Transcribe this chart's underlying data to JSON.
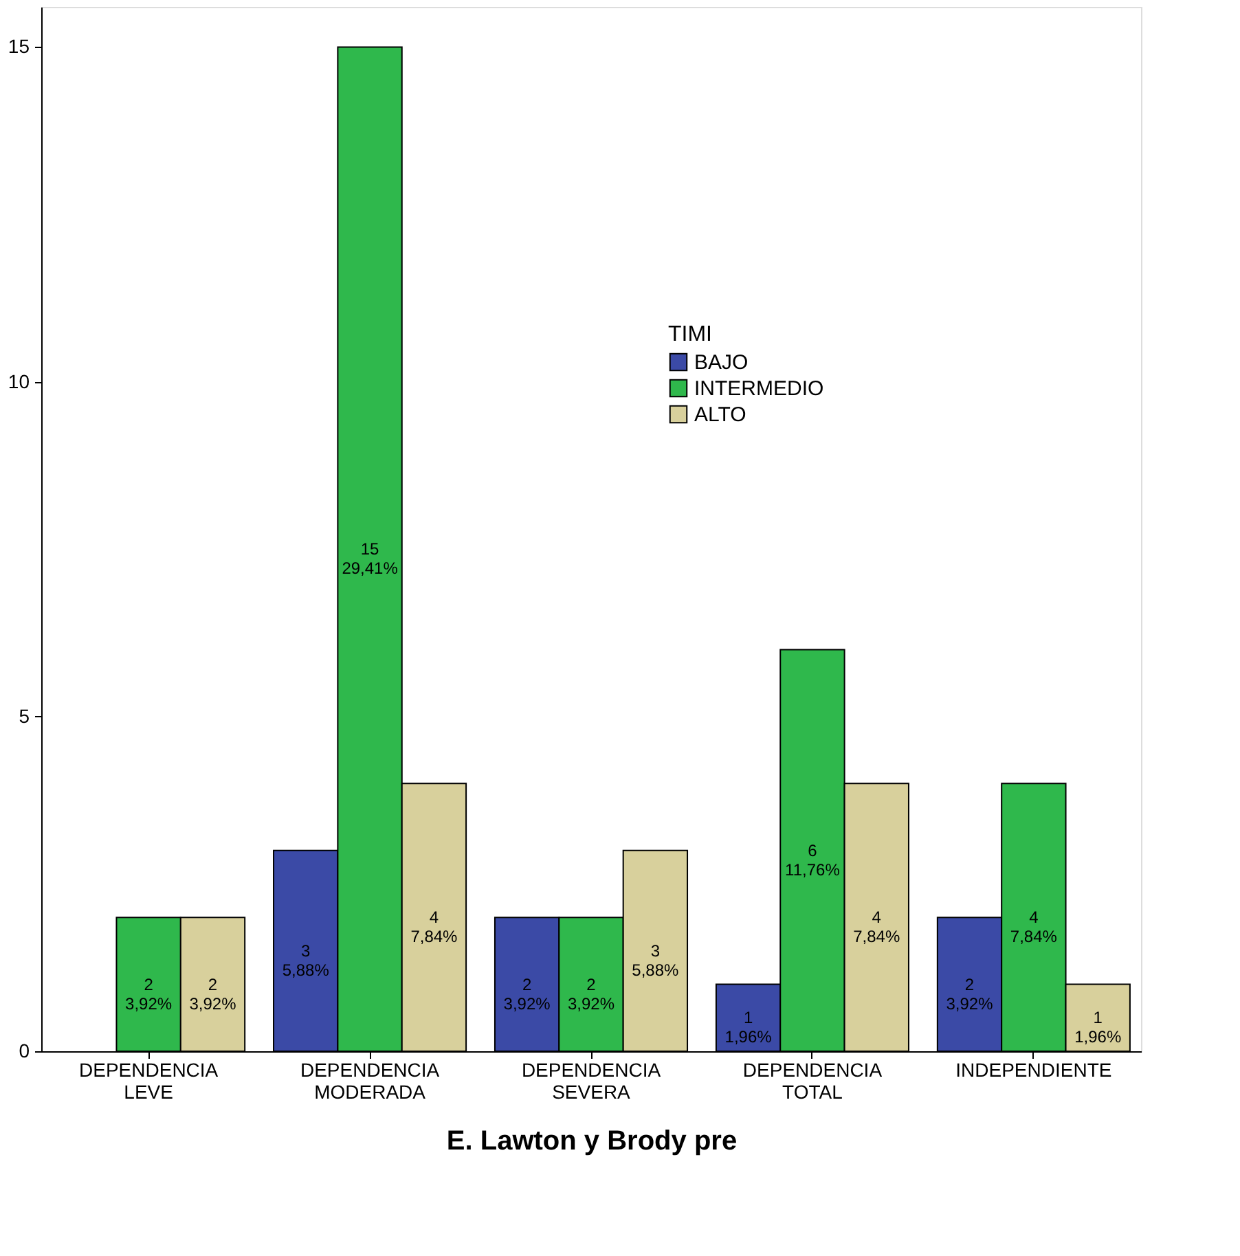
{
  "chart_data": {
    "type": "bar",
    "xlabel": "E. Lawton y Brody pre",
    "legend_title": "TIMI",
    "legend": "top right",
    "grid": false,
    "categories": [
      "DEPENDENCIA LEVE",
      "DEPENDENCIA MODERADA",
      "DEPENDENCIA SEVERA",
      "DEPENDENCIA TOTAL",
      "INDEPENDIENTE"
    ],
    "ylim": [
      0,
      15.6
    ],
    "yticks": [
      0,
      5,
      10,
      15
    ],
    "series": [
      {
        "name": "BAJO",
        "color": "#3b4aa6",
        "values": [
          null,
          3,
          2,
          1,
          2
        ],
        "value_labels": [
          null,
          "3\n5,88%",
          "2\n3,92%",
          "1\n1,96%",
          "2\n3,92%"
        ]
      },
      {
        "name": "INTERMEDIO",
        "color": "#2fb84c",
        "values": [
          2,
          15,
          2,
          6,
          4
        ],
        "value_labels": [
          "2\n3,92%",
          "15\n29,41%",
          "2\n3,92%",
          "6\n11,76%",
          "4\n7,84%"
        ]
      },
      {
        "name": "ALTO",
        "color": "#d8d09c",
        "values": [
          2,
          4,
          3,
          4,
          1
        ],
        "value_labels": [
          "2\n3,92%",
          "4\n7,84%",
          "3\n5,88%",
          "4\n7,84%",
          "1\n1,96%"
        ]
      }
    ]
  }
}
